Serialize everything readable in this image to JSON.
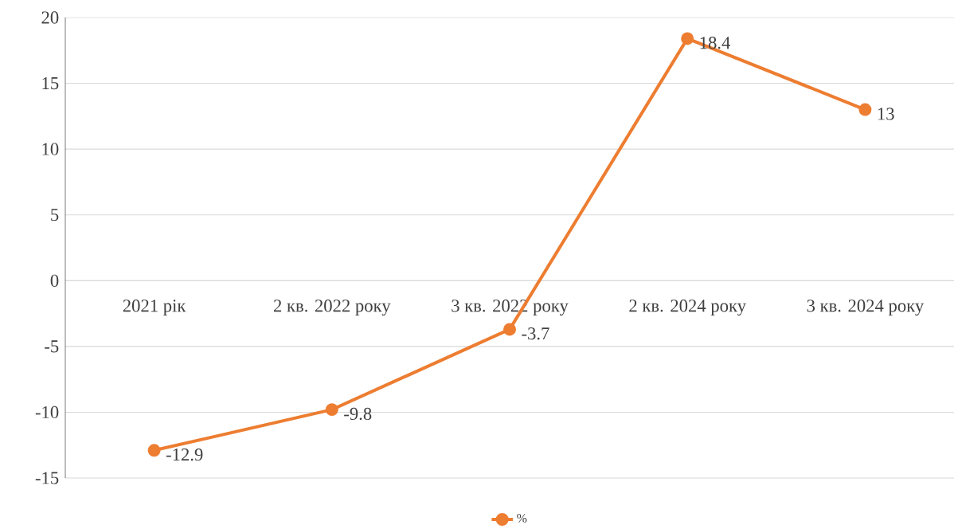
{
  "chart_data": {
    "type": "line",
    "categories": [
      "2021 рік",
      "2 кв. 2022 року",
      "3 кв. 2022 року",
      "2 кв. 2024 року",
      "3 кв. 2024 року"
    ],
    "series": [
      {
        "name": "%",
        "color": "#ed7d31",
        "values": [
          -12.9,
          -9.8,
          -3.7,
          18.4,
          13
        ],
        "value_labels": [
          "-12.9",
          "-9.8",
          "-3.7",
          "18.4",
          "13"
        ]
      }
    ],
    "ylim": [
      -15,
      20
    ],
    "yticks": [
      -15,
      -10,
      -5,
      0,
      5,
      10,
      15,
      20
    ],
    "grid": "y",
    "legend": "bottom",
    "marker": "circle",
    "line_style": "solid"
  }
}
